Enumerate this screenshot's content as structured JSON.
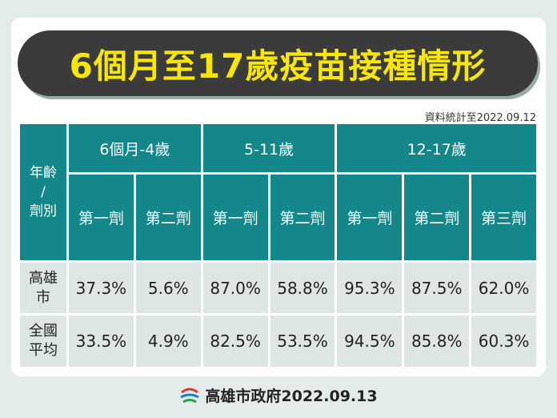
{
  "header": {
    "title": "6個月至17歲疫苗接種情形",
    "note": "資料統計至2022.09.12"
  },
  "table": {
    "corner": [
      "年齡",
      "/",
      "劑別"
    ],
    "groups": [
      "6個月-4歲",
      "5-11歲",
      "12-17歲"
    ],
    "doses": [
      "第一劑",
      "第二劑",
      "第一劑",
      "第二劑",
      "第一劑",
      "第二劑",
      "第三劑"
    ],
    "rows": [
      {
        "label": [
          "高雄",
          "市"
        ],
        "values": [
          "37.3%",
          "5.6%",
          "87.0%",
          "58.8%",
          "95.3%",
          "87.5%",
          "62.0%"
        ]
      },
      {
        "label": [
          "全國",
          "平均"
        ],
        "values": [
          "33.5%",
          "4.9%",
          "82.5%",
          "53.5%",
          "94.5%",
          "85.8%",
          "60.3%"
        ]
      }
    ]
  },
  "footer": {
    "text": "高雄市政府2022.09.13"
  }
}
